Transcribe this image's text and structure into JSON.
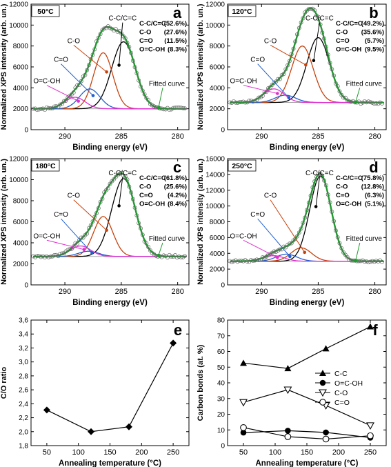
{
  "chart_data": [
    {
      "id": "a",
      "type": "line",
      "panel_letter": "a",
      "temperature_label": "50°C",
      "xlabel": "Binding energy (eV)",
      "ylabel": "Normalized XPS intensity (arb. un.)",
      "xlim": [
        293,
        279
      ],
      "ylim": [
        0,
        12000
      ],
      "x_ticks": [
        290,
        285,
        280
      ],
      "y_ticks": [
        0,
        2000,
        4000,
        6000,
        8000,
        10000,
        12000
      ],
      "baseline": 2000,
      "peaks": [
        {
          "label": "C-C/C=C",
          "center": 284.8,
          "height": 6400,
          "sigma": 1.05,
          "color": "#000000"
        },
        {
          "label": "C-O",
          "center": 286.6,
          "height": 5350,
          "sigma": 0.85,
          "color": "#c8400a"
        },
        {
          "label": "C=O",
          "center": 287.8,
          "height": 1900,
          "sigma": 0.9,
          "color": "#1f5fd0"
        },
        {
          "label": "O=C-OH",
          "center": 289.1,
          "height": 1100,
          "sigma": 0.9,
          "color": "#e02fd0"
        }
      ],
      "fitted_label": "Fitted curve",
      "fitted_color": "#1f9a2e",
      "composition": [
        {
          "name": "C-C/C=C",
          "value": "(52.6%)"
        },
        {
          "name": "C-O",
          "value": "(27.6%)"
        },
        {
          "name": "C=O",
          "value": "(11.5%)"
        },
        {
          "name": "O=C-OH",
          "value": "(8.3%)"
        }
      ]
    },
    {
      "id": "b",
      "type": "line",
      "panel_letter": "b",
      "temperature_label": "120°C",
      "xlabel": "Binding energy (eV)",
      "ylabel": "Normalized XPS intensity (arb. un.)",
      "xlim": [
        293,
        279
      ],
      "ylim": [
        0,
        12000
      ],
      "x_ticks": [
        290,
        285,
        280
      ],
      "y_ticks": [
        0,
        2000,
        4000,
        6000,
        8000,
        10000,
        12000
      ],
      "baseline": 2600,
      "peaks": [
        {
          "label": "C-C/C=C",
          "center": 285.0,
          "height": 6200,
          "sigma": 1.0,
          "color": "#000000"
        },
        {
          "label": "C-O",
          "center": 286.4,
          "height": 5400,
          "sigma": 0.95,
          "color": "#c8400a"
        },
        {
          "label": "C=O",
          "center": 287.9,
          "height": 700,
          "sigma": 0.9,
          "color": "#1f5fd0"
        },
        {
          "label": "O=C-OH",
          "center": 288.9,
          "height": 1300,
          "sigma": 0.9,
          "color": "#e02fd0"
        }
      ],
      "fitted_label": "Fitted curve",
      "fitted_color": "#1f9a2e",
      "composition": [
        {
          "name": "C-C/C=C",
          "value": "(49.2%)"
        },
        {
          "name": "C-O",
          "value": "(35.6%)"
        },
        {
          "name": "C=O",
          "value": "(5.7%)"
        },
        {
          "name": "O=C-OH",
          "value": "(9.5%)"
        }
      ]
    },
    {
      "id": "c",
      "type": "line",
      "panel_letter": "c",
      "temperature_label": "180°C",
      "xlabel": "Binding energy (eV)",
      "ylabel": "Normalized XPS intensity (arb. un.)",
      "xlim": [
        293,
        279
      ],
      "ylim": [
        0,
        12000
      ],
      "x_ticks": [
        290,
        285,
        280
      ],
      "y_ticks": [
        0,
        2000,
        4000,
        6000,
        8000,
        10000,
        12000
      ],
      "baseline": 2700,
      "peaks": [
        {
          "label": "C-C/C=C",
          "center": 284.8,
          "height": 7400,
          "sigma": 1.05,
          "color": "#000000"
        },
        {
          "label": "C-O",
          "center": 286.6,
          "height": 3800,
          "sigma": 0.85,
          "color": "#c8400a"
        },
        {
          "label": "C=O",
          "center": 287.9,
          "height": 500,
          "sigma": 0.9,
          "color": "#1f5fd0"
        },
        {
          "label": "O=C-OH",
          "center": 288.6,
          "height": 1000,
          "sigma": 0.9,
          "color": "#e02fd0"
        }
      ],
      "fitted_label": "Fitted curve",
      "fitted_color": "#1f9a2e",
      "composition": [
        {
          "name": "C-C/C=C",
          "value": "(61.8%)"
        },
        {
          "name": "C-O",
          "value": "(25.6%)"
        },
        {
          "name": "C=O",
          "value": "(4.2%)"
        },
        {
          "name": "O=C-OH",
          "value": "(8.4%)"
        }
      ]
    },
    {
      "id": "d",
      "type": "line",
      "panel_letter": "d",
      "temperature_label": "250°C",
      "xlabel": "Binding energy (eV)",
      "ylabel": "Normalized XPS intensity (arb. un.)",
      "xlim": [
        293,
        279
      ],
      "ylim": [
        0,
        16000
      ],
      "x_ticks": [
        290,
        285,
        280
      ],
      "y_ticks": [
        0,
        2000,
        4000,
        6000,
        8000,
        10000,
        12000,
        14000,
        16000
      ],
      "baseline": 3000,
      "peaks": [
        {
          "label": "C-C/C=C",
          "center": 284.8,
          "height": 10800,
          "sigma": 0.95,
          "color": "#000000"
        },
        {
          "label": "C-O",
          "center": 286.5,
          "height": 1700,
          "sigma": 0.9,
          "color": "#c8400a"
        },
        {
          "label": "C=O",
          "center": 287.8,
          "height": 900,
          "sigma": 0.9,
          "color": "#1f5fd0"
        },
        {
          "label": "O=C-OH",
          "center": 288.9,
          "height": 700,
          "sigma": 0.9,
          "color": "#e02fd0"
        }
      ],
      "fitted_label": "Fitted curve",
      "fitted_color": "#1f9a2e",
      "composition": [
        {
          "name": "C-C/C=C",
          "value": "(75.8%)"
        },
        {
          "name": "C-O",
          "value": "(12.8%)"
        },
        {
          "name": "C=O",
          "value": "(6.3%)"
        },
        {
          "name": "O=C-OH",
          "value": "(5.1%)"
        }
      ]
    },
    {
      "id": "e",
      "type": "line",
      "panel_letter": "e",
      "xlabel": "Annealing temperature (°C)",
      "ylabel": "C/O ratio",
      "xlim": [
        25,
        275
      ],
      "ylim": [
        1.8,
        3.6
      ],
      "x_ticks": [
        50,
        100,
        150,
        200,
        250
      ],
      "y_ticks": [
        "1,8",
        "2,0",
        "2,2",
        "2,4",
        "2,6",
        "2,8",
        "3,0",
        "3,2",
        "3,4",
        "3,6"
      ],
      "series": [
        {
          "name": "C/O ratio",
          "marker": "diamond",
          "x": [
            50,
            120,
            180,
            250
          ],
          "y": [
            2.31,
            2.0,
            2.07,
            3.27
          ]
        }
      ]
    },
    {
      "id": "f",
      "type": "line",
      "panel_letter": "f",
      "xlabel": "Annealing temperature (°C)",
      "ylabel": "Carbon bonds (at. %)",
      "xlim": [
        25,
        275
      ],
      "ylim": [
        0,
        80
      ],
      "x_ticks": [
        50,
        100,
        150,
        200,
        250
      ],
      "y_ticks": [
        0,
        10,
        20,
        30,
        40,
        50,
        60,
        70,
        80
      ],
      "legend_position": "right",
      "series": [
        {
          "name": "C-C",
          "marker": "triangle-up-filled",
          "x": [
            50,
            120,
            180,
            250
          ],
          "y": [
            52.6,
            49.2,
            61.8,
            75.8
          ]
        },
        {
          "name": "O=C-OH",
          "marker": "circle-filled",
          "x": [
            50,
            120,
            180,
            250
          ],
          "y": [
            8.3,
            9.5,
            8.4,
            5.1
          ]
        },
        {
          "name": "C-O",
          "marker": "triangle-down-open",
          "x": [
            50,
            120,
            180,
            250
          ],
          "y": [
            27.6,
            35.6,
            25.6,
            12.8
          ]
        },
        {
          "name": "C=O",
          "marker": "circle-open",
          "x": [
            50,
            120,
            180,
            250
          ],
          "y": [
            11.5,
            5.7,
            4.2,
            6.3
          ]
        }
      ]
    }
  ]
}
